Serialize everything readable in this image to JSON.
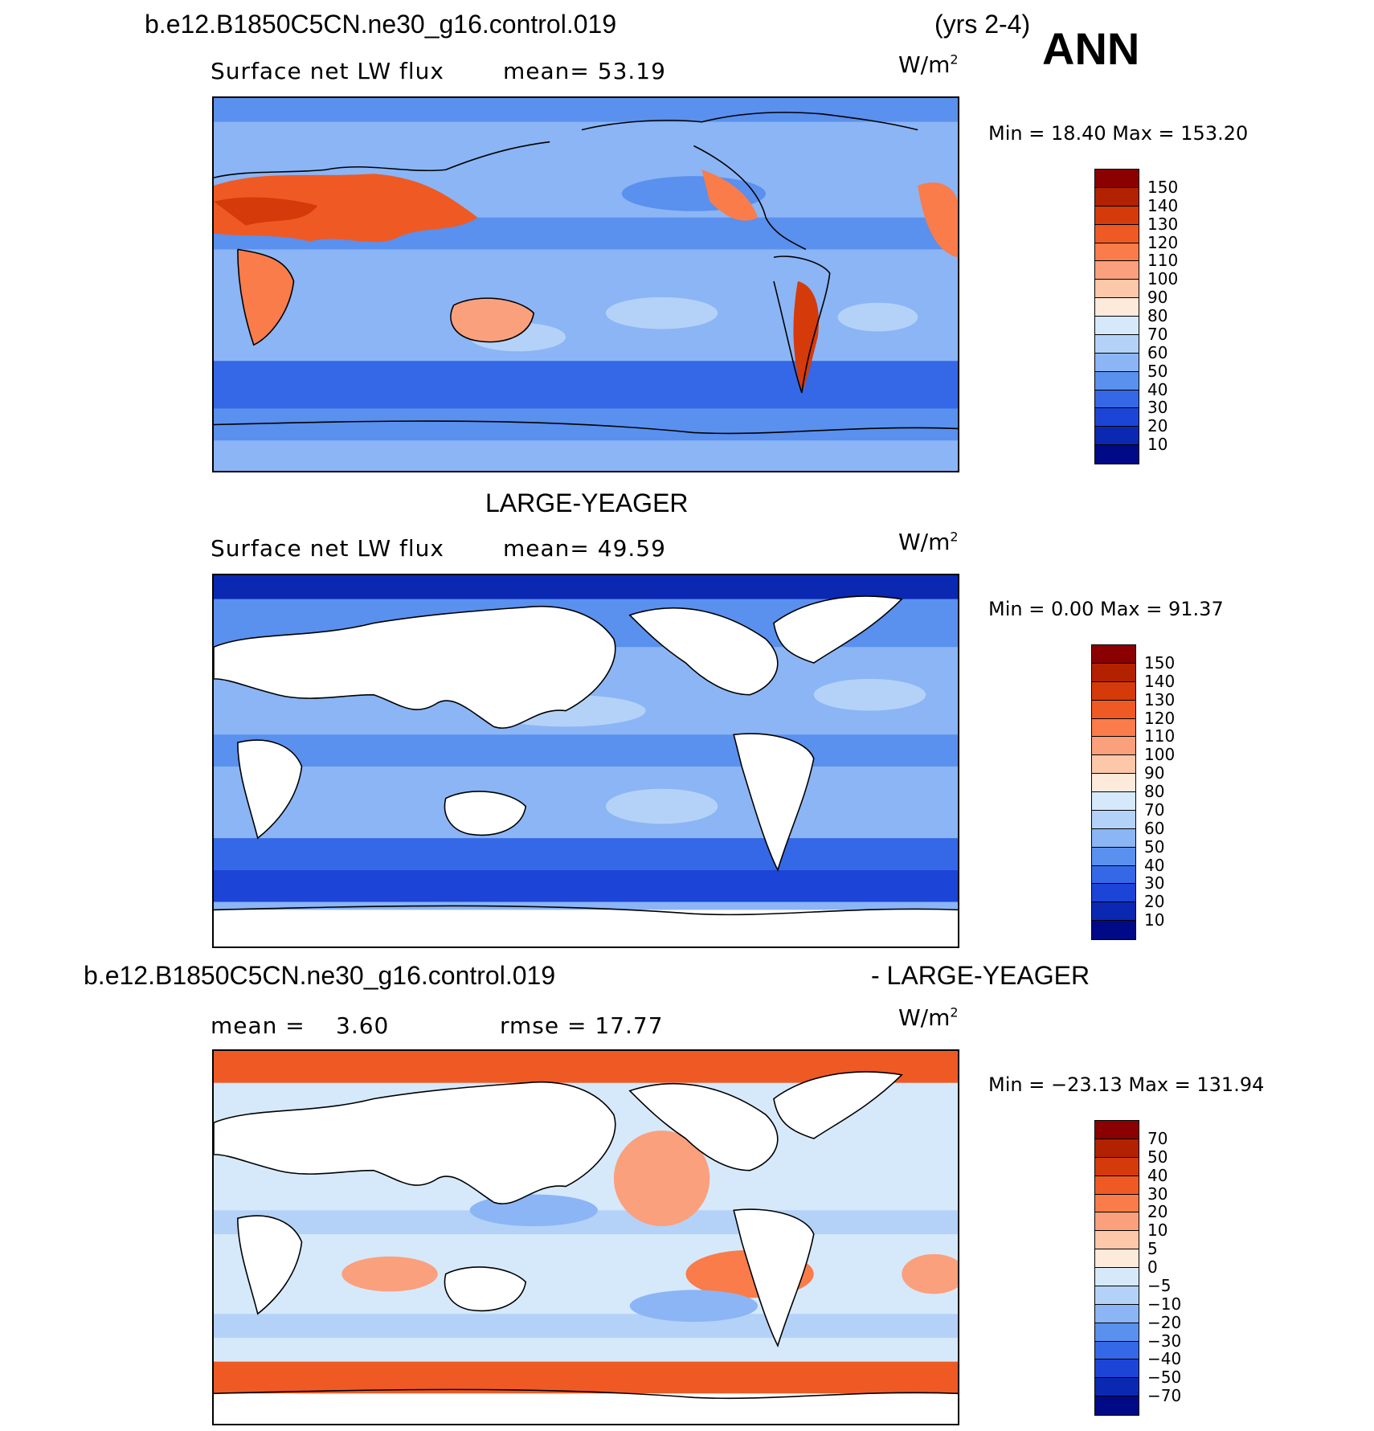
{
  "header": {
    "case_title": "b.e12.B1850C5CN.ne30_g16.control.019",
    "years": "(yrs 2-4)",
    "season": "ANN"
  },
  "panels": [
    {
      "id": "model",
      "heading": "",
      "variable": "Surface net LW flux",
      "stat_left": "mean=  53.19",
      "stat_right": "",
      "units_base": "W/m",
      "units_sup": "2",
      "minmax": "Min =   18.40 Max = 153.20",
      "land_masked": false,
      "colorbar_labels": [
        "150",
        "140",
        "130",
        "120",
        "110",
        "100",
        "90",
        "80",
        "70",
        "60",
        "50",
        "40",
        "30",
        "20",
        "10"
      ]
    },
    {
      "id": "obs",
      "heading": "LARGE-YEAGER",
      "variable": "Surface net LW flux",
      "stat_left": "mean=  49.59",
      "stat_right": "",
      "units_base": "W/m",
      "units_sup": "2",
      "minmax": "Min =    0.00 Max =   91.37",
      "land_masked": true,
      "colorbar_labels": [
        "150",
        "140",
        "130",
        "120",
        "110",
        "100",
        "90",
        "80",
        "70",
        "60",
        "50",
        "40",
        "30",
        "20",
        "10"
      ]
    },
    {
      "id": "diff",
      "heading_left": "b.e12.B1850C5CN.ne30_g16.control.019",
      "heading_right": "- LARGE-YEAGER",
      "variable": "mean =",
      "stat_left": "3.60",
      "stat_right": "rmse =   17.77",
      "units_base": "W/m",
      "units_sup": "2",
      "minmax": "Min = −23.13 Max = 131.94",
      "land_masked": true,
      "colorbar_labels": [
        "70",
        "50",
        "40",
        "30",
        "20",
        "10",
        "5",
        "0",
        "−5",
        "−10",
        "−20",
        "−30",
        "−40",
        "−50",
        "−70"
      ]
    }
  ],
  "colors": {
    "scale": [
      "#8b0000",
      "#b22200",
      "#d53a0b",
      "#ef5a24",
      "#f97c4a",
      "#fba07c",
      "#fdc7aa",
      "#feeadb",
      "#d6e9fb",
      "#b4d2f8",
      "#8bb5f5",
      "#5a90ee",
      "#3568e6",
      "#1c44d6",
      "#0a28b2",
      "#000a86"
    ],
    "land": "#ffffff",
    "coast": "#000000"
  }
}
